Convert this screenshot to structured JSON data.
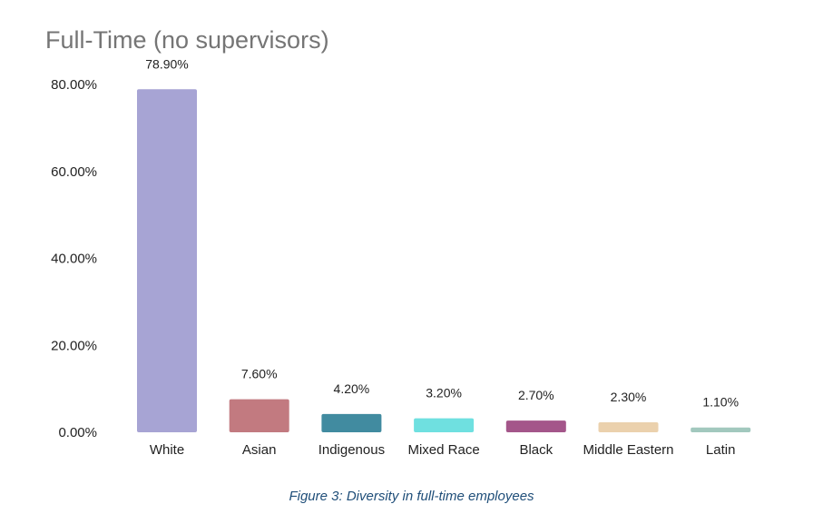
{
  "chart_data": {
    "type": "bar",
    "title": "Full-Time (no supervisors)",
    "categories": [
      "White",
      "Asian",
      "Indigenous",
      "Mixed Race",
      "Black",
      "Middle Eastern",
      "Latin"
    ],
    "values": [
      78.9,
      7.6,
      4.2,
      3.2,
      2.7,
      2.3,
      1.1
    ],
    "data_labels": [
      "78.90%",
      "7.60%",
      "4.20%",
      "3.20%",
      "2.70%",
      "2.30%",
      "1.10%"
    ],
    "colors": [
      "#a7a4d4",
      "#c27a80",
      "#418ba0",
      "#6fe0e0",
      "#a4568a",
      "#ebd1ad",
      "#a2c8be"
    ],
    "yticks": [
      0,
      20,
      40,
      60,
      80
    ],
    "ytick_labels": [
      "0.00%",
      "20.00%",
      "40.00%",
      "60.00%",
      "80.00%"
    ],
    "ylim": [
      0,
      80
    ],
    "xlabel": "",
    "ylabel": "",
    "grid": false,
    "legend": false
  },
  "caption": "Figure 3: Diversity in full-time employees"
}
